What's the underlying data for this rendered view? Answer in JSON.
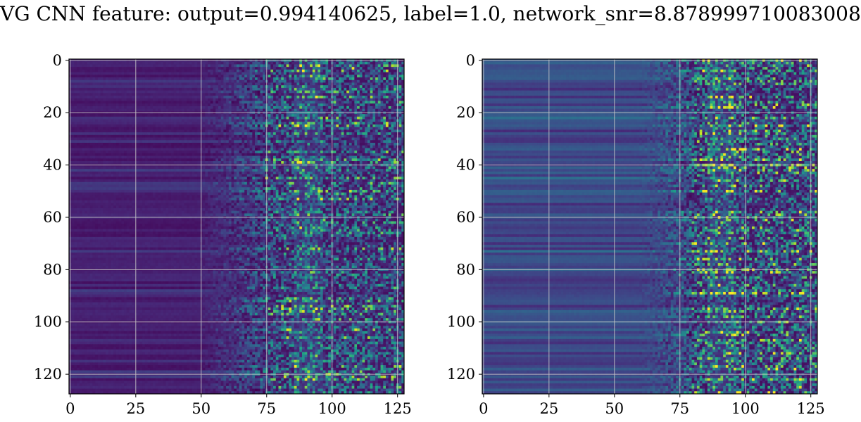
{
  "title": "VG CNN feature: output=0.994140625, label=1.0, network_snr=8.878999710083008",
  "colors": {
    "colormap": "viridis",
    "grid": "#c8c8c8",
    "frame": "#000000",
    "background": "#ffffff"
  },
  "chart_data": [
    {
      "type": "heatmap",
      "title": "",
      "xlabel": "",
      "ylabel": "",
      "xlim": [
        -0.5,
        127.5
      ],
      "ylim": [
        127.5,
        -0.5
      ],
      "rows": 128,
      "cols": 128,
      "xticks": [
        0,
        25,
        50,
        75,
        100,
        125
      ],
      "yticks": [
        0,
        20,
        40,
        60,
        80,
        100,
        120
      ],
      "xtick_labels": [
        "0",
        "25",
        "50",
        "75",
        "100",
        "125"
      ],
      "ytick_labels": [
        "0",
        "20",
        "40",
        "60",
        "80",
        "100",
        "120"
      ],
      "grid": true,
      "colormap": "viridis",
      "value_range": [
        0,
        1
      ],
      "description_regions": {
        "low_columns": [
          0,
          50
        ],
        "low_level": 0.08,
        "transition_columns": [
          50,
          75
        ],
        "noisy_columns": [
          75,
          127
        ],
        "noisy_mean": 0.28
      },
      "hotspots": [
        {
          "row": 3,
          "col": 108,
          "value": 0.98
        },
        {
          "row": 64,
          "col": 88,
          "value": 0.95
        },
        {
          "row": 61,
          "col": 97,
          "value": 0.8
        },
        {
          "row": 113,
          "col": 94,
          "value": 0.85
        },
        {
          "row": 43,
          "col": 88,
          "value": 0.7
        },
        {
          "row": 68,
          "col": 82,
          "value": 0.65
        },
        {
          "row": 32,
          "col": 91,
          "value": 0.62
        },
        {
          "row": 66,
          "col": 122,
          "value": 0.6
        }
      ]
    },
    {
      "type": "heatmap",
      "title": "",
      "xlabel": "",
      "ylabel": "",
      "xlim": [
        -0.5,
        127.5
      ],
      "ylim": [
        127.5,
        -0.5
      ],
      "rows": 128,
      "cols": 128,
      "xticks": [
        0,
        25,
        50,
        75,
        100,
        125
      ],
      "yticks": [
        0,
        20,
        40,
        60,
        80,
        100,
        120
      ],
      "xtick_labels": [
        "0",
        "25",
        "50",
        "75",
        "100",
        "125"
      ],
      "ytick_labels": [
        "0",
        "20",
        "40",
        "60",
        "80",
        "100",
        "120"
      ],
      "grid": true,
      "colormap": "viridis",
      "value_range": [
        0,
        1
      ],
      "description_regions": {
        "low_columns": [
          0,
          60
        ],
        "low_level": 0.22,
        "transition_columns": [
          60,
          80
        ],
        "noisy_columns": [
          80,
          127
        ],
        "noisy_mean": 0.32
      },
      "hotspots": [
        {
          "row": 36,
          "col": 92,
          "value": 0.98
        },
        {
          "row": 40,
          "col": 91,
          "value": 0.95
        },
        {
          "row": 40,
          "col": 82,
          "value": 0.85
        },
        {
          "row": 40,
          "col": 86,
          "value": 0.8
        },
        {
          "row": 76,
          "col": 89,
          "value": 0.85
        },
        {
          "row": 115,
          "col": 93,
          "value": 0.82
        },
        {
          "row": 26,
          "col": 89,
          "value": 0.7
        },
        {
          "row": 15,
          "col": 91,
          "value": 0.65
        },
        {
          "row": 54,
          "col": 90,
          "value": 0.65
        },
        {
          "row": 103,
          "col": 112,
          "value": 0.6
        },
        {
          "row": 82,
          "col": 75,
          "value": 0.62
        }
      ]
    }
  ]
}
